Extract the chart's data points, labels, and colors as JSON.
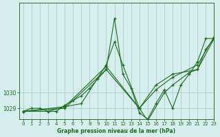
{
  "title": "Graphe pression niveau de la mer (hPa)",
  "bg_color": "#d6eeee",
  "plot_bg_color": "#d6eeee",
  "grid_color": "#aacccc",
  "line_color": "#1a6b1a",
  "xlim": [
    -0.5,
    23
  ],
  "ylim": [
    1028.3,
    1035.8
  ],
  "yticks": [
    1029,
    1030
  ],
  "xticks": [
    0,
    1,
    2,
    3,
    4,
    5,
    6,
    7,
    8,
    9,
    10,
    11,
    12,
    13,
    14,
    15,
    16,
    17,
    18,
    19,
    20,
    21,
    22,
    23
  ],
  "series": [
    {
      "x": [
        0,
        1,
        2,
        3,
        4,
        5,
        6,
        7,
        8,
        9,
        10,
        11,
        12,
        13,
        14,
        15,
        16,
        17,
        18,
        19,
        20,
        21,
        22,
        23
      ],
      "y": [
        1028.8,
        1029.0,
        1029.0,
        1028.8,
        1028.8,
        1029.2,
        1029.5,
        1029.8,
        1030.3,
        1030.9,
        1031.5,
        1034.8,
        1031.2,
        1030.3,
        1028.7,
        1028.3,
        1029.3,
        1030.2,
        1029.0,
        1030.5,
        1031.2,
        1032.0,
        1033.5,
        1033.5
      ]
    },
    {
      "x": [
        0,
        3,
        5,
        7,
        10,
        11,
        12,
        14,
        15,
        17,
        18,
        20,
        21,
        22,
        23
      ],
      "y": [
        1028.8,
        1028.8,
        1029.1,
        1029.3,
        1031.8,
        1033.3,
        1031.8,
        1029.0,
        1028.2,
        1030.0,
        1030.5,
        1031.3,
        1031.5,
        1032.8,
        1033.5
      ]
    },
    {
      "x": [
        0,
        5,
        10,
        14,
        16,
        18,
        21,
        23
      ],
      "y": [
        1028.8,
        1029.1,
        1031.7,
        1029.0,
        1030.5,
        1031.2,
        1031.5,
        1033.5
      ]
    },
    {
      "x": [
        0,
        5,
        10,
        14,
        16,
        18,
        21,
        23
      ],
      "y": [
        1028.8,
        1029.0,
        1031.5,
        1029.0,
        1030.2,
        1031.0,
        1031.8,
        1033.6
      ]
    }
  ]
}
